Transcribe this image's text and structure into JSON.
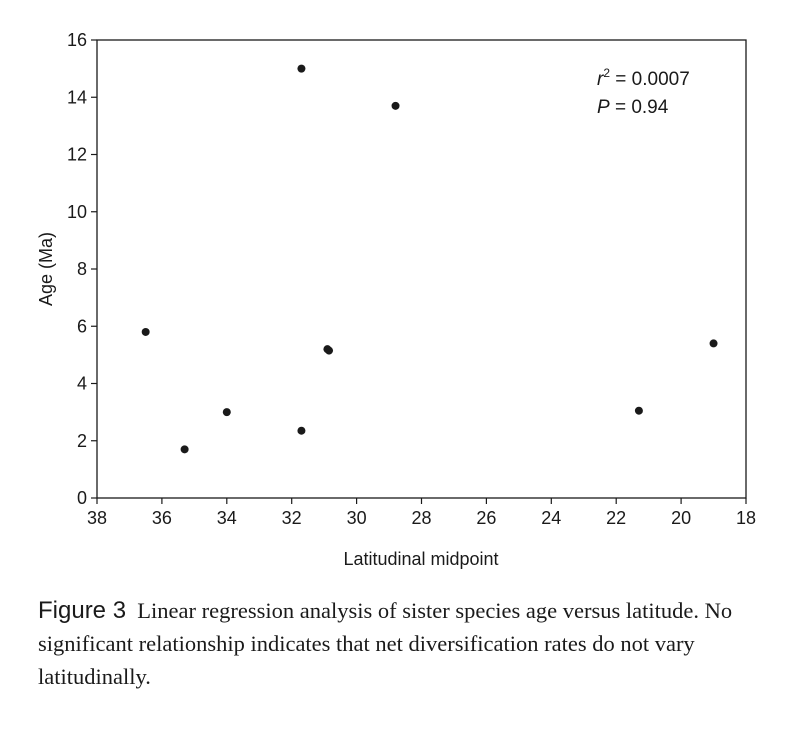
{
  "chart_data": {
    "type": "scatter",
    "xlabel": "Latitudinal midpoint",
    "ylabel": "Age (Ma)",
    "xlim": [
      38,
      18
    ],
    "ylim": [
      0,
      16
    ],
    "x_reversed": true,
    "xticks": [
      38,
      36,
      34,
      32,
      30,
      28,
      26,
      24,
      22,
      20,
      18
    ],
    "yticks": [
      0,
      2,
      4,
      6,
      8,
      10,
      12,
      14,
      16
    ],
    "grid": false,
    "points": [
      {
        "x": 36.5,
        "y": 5.8
      },
      {
        "x": 35.3,
        "y": 1.7
      },
      {
        "x": 34.0,
        "y": 3.0
      },
      {
        "x": 31.7,
        "y": 15.0
      },
      {
        "x": 31.7,
        "y": 2.35
      },
      {
        "x": 30.9,
        "y": 5.2
      },
      {
        "x": 30.85,
        "y": 5.15
      },
      {
        "x": 28.8,
        "y": 13.7
      },
      {
        "x": 21.3,
        "y": 3.05
      },
      {
        "x": 19.0,
        "y": 5.4
      }
    ],
    "annotations": {
      "r2_symbol": "r",
      "r2_superscript": "2",
      "r2_value": " = 0.0007",
      "p_symbol": "P",
      "p_value": " = 0.94"
    },
    "colors": {
      "point": "#1a1a1a",
      "axis": "#1a1a1a"
    }
  },
  "caption": {
    "label": "Figure 3",
    "text": "Linear regression analysis of sister species age versus latitude. No significant relationship indicates that net diversification rates do not vary latitudinally."
  }
}
